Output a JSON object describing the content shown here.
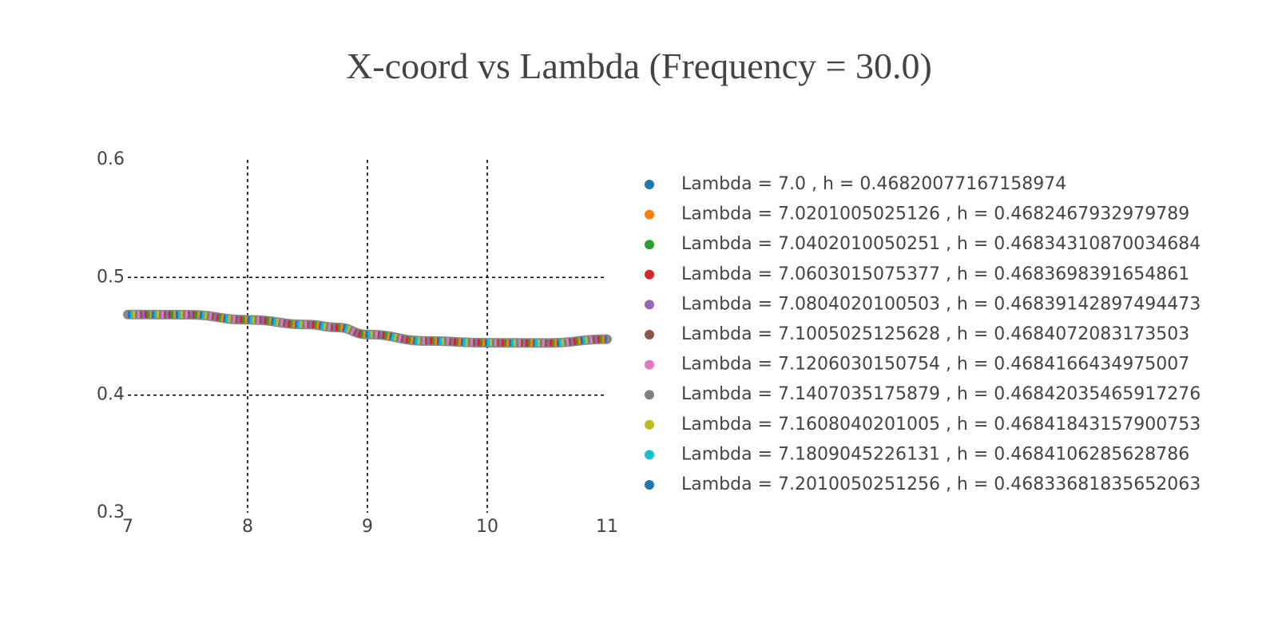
{
  "chart_data": {
    "type": "scatter",
    "title": "X-coord vs Lambda (Frequency = 30.0)",
    "xlabel": "",
    "ylabel": "",
    "xlim": [
      7,
      11
    ],
    "ylim": [
      0.3,
      0.6
    ],
    "x_ticks": [
      "7",
      "8",
      "9",
      "10",
      "11"
    ],
    "y_ticks": [
      "0.3",
      "0.4",
      "0.5",
      "0.6"
    ],
    "grid": "dashed",
    "legend_position": "right",
    "colors": [
      "#1f77b4",
      "#ff7f0e",
      "#2ca02c",
      "#d62728",
      "#9467bd",
      "#8c564b",
      "#e377c2",
      "#7f7f7f",
      "#bcbd22",
      "#17becf"
    ],
    "curve": {
      "x": [
        7.0,
        7.5,
        8.0,
        8.5,
        8.75,
        9.0,
        9.5,
        10.0,
        10.5,
        11.0
      ],
      "y": [
        0.4685,
        0.4683,
        0.464,
        0.46,
        0.4575,
        0.4515,
        0.446,
        0.4445,
        0.4443,
        0.4475
      ]
    },
    "series": [
      {
        "name": "Lambda = 7.0 , h = 0.46820077167158974"
      },
      {
        "name": "Lambda = 7.0201005025126 , h = 0.4682467932979789"
      },
      {
        "name": "Lambda = 7.0402010050251 , h = 0.46834310870034684"
      },
      {
        "name": "Lambda = 7.0603015075377 , h = 0.4683698391654861"
      },
      {
        "name": "Lambda = 7.0804020100503 , h = 0.46839142897494473"
      },
      {
        "name": "Lambda = 7.1005025125628 , h = 0.4684072083173503"
      },
      {
        "name": "Lambda = 7.1206030150754 , h = 0.4684166434975007"
      },
      {
        "name": "Lambda = 7.1407035175879 , h = 0.46842035465917276"
      },
      {
        "name": "Lambda = 7.1608040201005 , h = 0.46841843157900753"
      },
      {
        "name": "Lambda = 7.1809045226131 , h = 0.4684106285628786"
      },
      {
        "name": "Lambda = 7.2010050251256 , h = 0.46833681835652063"
      }
    ]
  }
}
